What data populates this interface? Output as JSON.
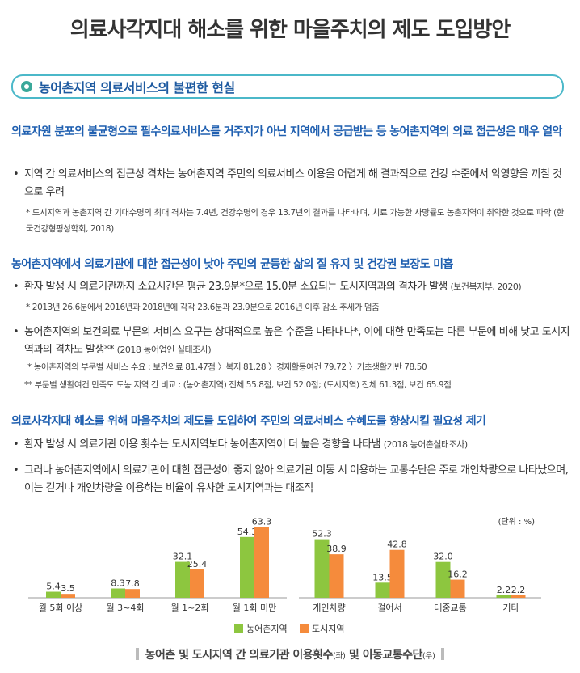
{
  "title": "의료사각지대 해소를 위한 마을주치의 제도 도입방안",
  "section": {
    "label": "농어촌지역 의료서비스의 불편한 현실"
  },
  "blocks": [
    {
      "heading": "의료자원 분포의 불균형으로 필수의료서비스를 거주지가 아닌 지역에서 공급받는 등 농어촌지역의 의료 접근성은 매우 열악",
      "bullets": [
        {
          "text": "지역 간 의료서비스의 접근성 격차는 농어촌지역 주민의 의료서비스 이용을 어렵게 해 결과적으로 건강 수준에서 악영향을 끼칠 것으로 우려",
          "source": ""
        }
      ],
      "notes": [
        "* 도시지역과 농촌지역 간 기대수명의 최대 격차는 7.4년, 건강수명의 경우 13.7년의 결과를 나타내며, 치료 가능한 사망률도 농촌지역이 취약한 것으로 파악 (한국건강형평성학회, 2018)"
      ]
    },
    {
      "heading": "농어촌지역에서 의료기관에 대한 접근성이 낮아 주민의 균등한 삶의 질 유지 및 건강권 보장도 미흡",
      "bullets": [
        {
          "text": "환자 발생 시 의료기관까지 소요시간은 평균 23.9분*으로 15.0분 소요되는 도시지역과의 격차가 발생 ",
          "source": "(보건복지부, 2020)"
        },
        {
          "text": "농어촌지역의 보건의료 부문의 서비스 요구는 상대적으로 높은 수준을 나타내나*, 이에 대한 만족도는 다른 부문에 비해 낮고 도시지역과의 격차도 발생** ",
          "source": "(2018 농어업인 실태조사)"
        }
      ],
      "notes": [
        "* 2013년 26.6분에서 2016년과 2018년에 각각 23.6분과 23.9분으로 2016년 이후 감소 추세가 멈춤",
        "* 농어촌지역의 부문별 서비스 수요 : 보건의료 81.47점 〉복지 81.28 〉경제활동여건 79.72 〉기초생활기반 78.50",
        "** 부문별 생활여건 만족도 도농 지역 간 비교 : (농어촌지역) 전체 55.8점, 보건 52.0점; (도시지역) 전체 61.3점, 보건 65.9점"
      ]
    },
    {
      "heading": "의료사각지대 해소를 위해 마을주치의 제도를 도입하여 주민의 의료서비스 수혜도를 향상시킬 필요성 제기",
      "bullets": [
        {
          "text": "환자 발생 시 의료기관 이용 횟수는 도시지역보다 농어촌지역이 더 높은 경향을 나타냄 ",
          "source": "(2018 농어촌실태조사)"
        },
        {
          "text": "그러나 농어촌지역에서 의료기관에 대한 접근성이 좋지 않아 의료기관 이동 시 이용하는 교통수단은 주로 개인차량으로 나타났으며, 이는 걷거나 개인차량을 이용하는 비율이 유사한 도시지역과는 대조적",
          "source": ""
        }
      ],
      "notes": []
    }
  ],
  "chart_data": [
    {
      "type": "bar",
      "categories": [
        "월 5회 이상",
        "월 3~4회",
        "월 1~2회",
        "월 1회 미만"
      ],
      "series": [
        {
          "name": "농어촌지역",
          "values": [
            5.4,
            8.3,
            32.1,
            54.3
          ]
        },
        {
          "name": "도시지역",
          "values": [
            3.5,
            7.8,
            25.4,
            63.3
          ]
        }
      ]
    },
    {
      "type": "bar",
      "unit": "(단위 : %)",
      "categories": [
        "개인차량",
        "걸어서",
        "대중교통",
        "기타"
      ],
      "series": [
        {
          "name": "농어촌지역",
          "values": [
            52.3,
            13.5,
            32.0,
            2.2
          ]
        },
        {
          "name": "도시지역",
          "values": [
            38.9,
            42.8,
            16.2,
            2.2
          ]
        }
      ]
    }
  ],
  "colors": {
    "rural": "#8dc63f",
    "urban": "#f58b3c",
    "heading": "#1f5fb0",
    "section_border": "#4bb8c9"
  },
  "legend": {
    "rural": "농어촌지역",
    "urban": "도시지역"
  },
  "caption": {
    "main": "농어촌 및 도시지역 간 의료기관 이용횟수",
    "left": "(좌)",
    "mid": " 및 이동교통수단",
    "right": "(우)"
  }
}
